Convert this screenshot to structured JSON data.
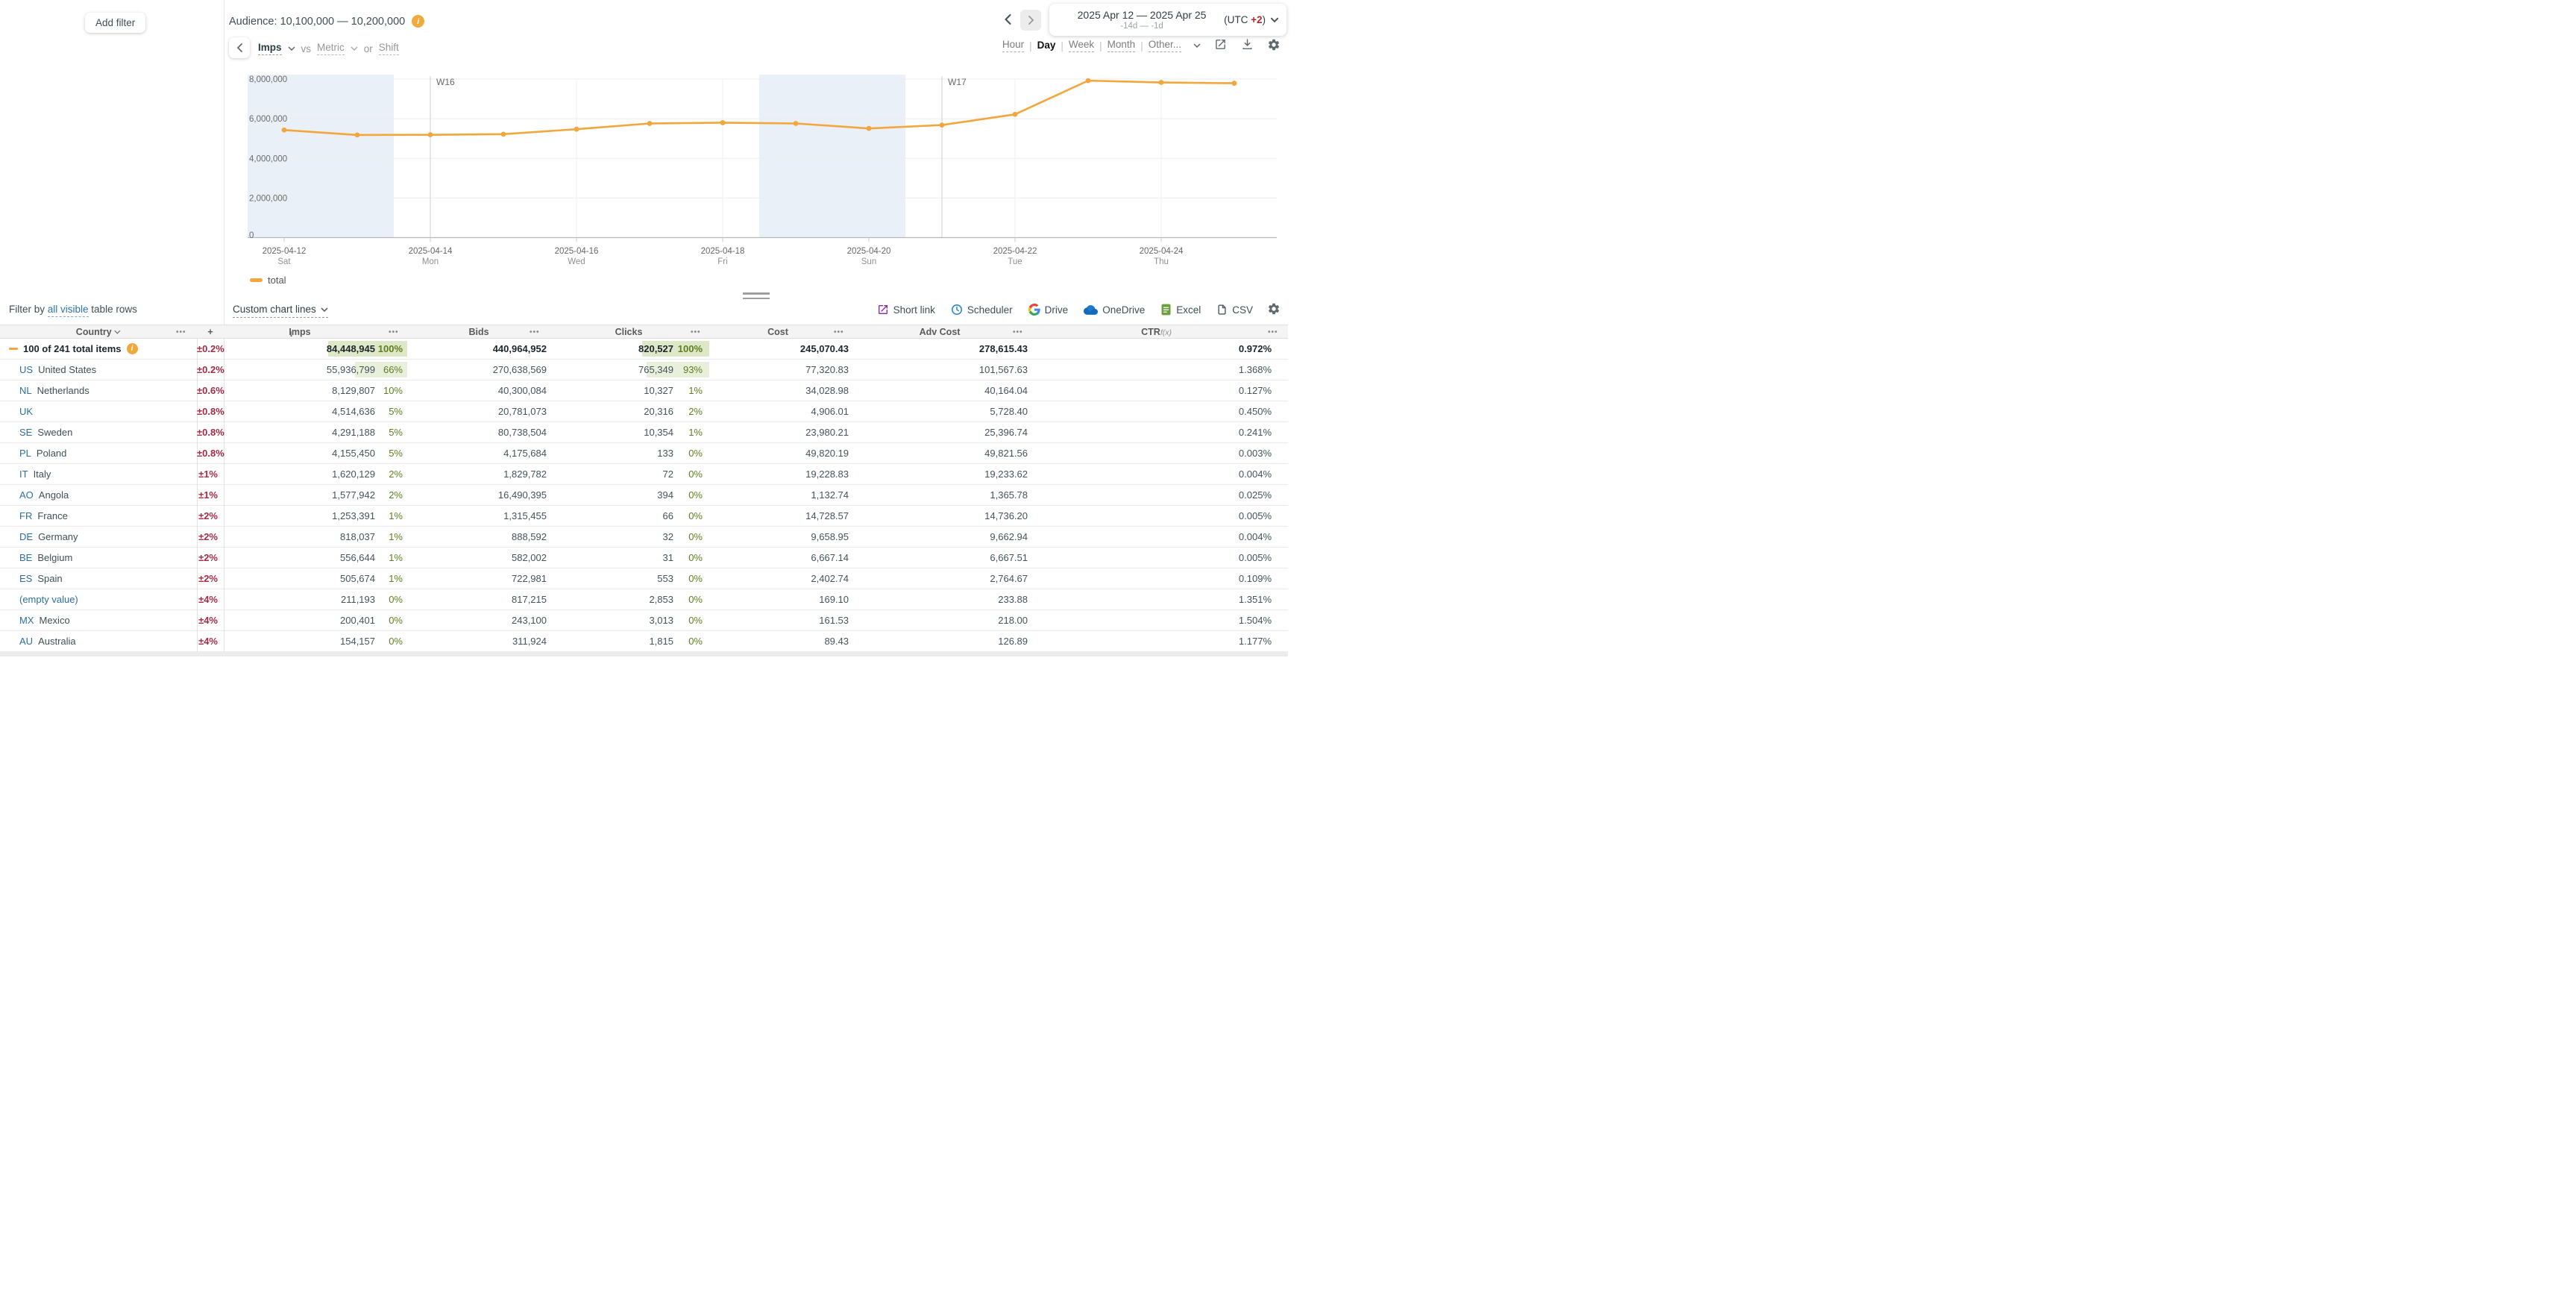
{
  "topbar": {
    "add_filter_label": "Add filter",
    "audience_label": "Audience: 10,100,000 — 10,200,000"
  },
  "controls": {
    "metric_selected": "Imps",
    "vs_label": "vs",
    "metric_placeholder": "Metric",
    "or_label": "or",
    "shift_label": "Shift"
  },
  "datebar": {
    "range_label": "2025 Apr 12 — 2025 Apr 25",
    "relative_label": "-14d — -1d",
    "utc_prefix": "(UTC ",
    "utc_offset": "+2",
    "utc_suffix": ")"
  },
  "granularity": {
    "options": [
      "Hour",
      "Day",
      "Week",
      "Month",
      "Other..."
    ],
    "active": "Day"
  },
  "chart_data": {
    "type": "line",
    "title": "Imps by day",
    "x": [
      "2025-04-12",
      "2025-04-13",
      "2025-04-14",
      "2025-04-15",
      "2025-04-16",
      "2025-04-17",
      "2025-04-18",
      "2025-04-19",
      "2025-04-20",
      "2025-04-21",
      "2025-04-22",
      "2025-04-23",
      "2025-04-24",
      "2025-04-25"
    ],
    "series": [
      {
        "name": "total",
        "color": "#f2a63b",
        "values": [
          5430000,
          5180000,
          5190000,
          5220000,
          5470000,
          5760000,
          5800000,
          5760000,
          5510000,
          5680000,
          6220000,
          7920000,
          7830000,
          7790000
        ]
      }
    ],
    "ylim": [
      0,
      8000000
    ],
    "yticks": [
      0,
      2000000,
      4000000,
      6000000,
      8000000
    ],
    "ytick_labels": [
      "0",
      "2,000,000",
      "4,000,000",
      "6,000,000",
      "8,000,000"
    ],
    "xticks": [
      {
        "date": "2025-04-12",
        "day": "Sat"
      },
      {
        "date": "2025-04-14",
        "day": "Mon"
      },
      {
        "date": "2025-04-16",
        "day": "Wed"
      },
      {
        "date": "2025-04-18",
        "day": "Fri"
      },
      {
        "date": "2025-04-20",
        "day": "Sun"
      },
      {
        "date": "2025-04-22",
        "day": "Tue"
      },
      {
        "date": "2025-04-24",
        "day": "Thu"
      }
    ],
    "week_markers": [
      {
        "label": "W16",
        "date": "2025-04-14"
      },
      {
        "label": "W17",
        "date": "2025-04-21"
      }
    ],
    "weekend_bands": [
      [
        "2025-04-12",
        "2025-04-13"
      ],
      [
        "2025-04-19",
        "2025-04-20"
      ]
    ],
    "grid": true,
    "legend_position": "bottom-left",
    "legend_label": "total"
  },
  "filter_row": {
    "prefix": "Filter by ",
    "link": "all visible",
    "suffix": " table rows",
    "custom_lines_label": "Custom chart lines"
  },
  "export_row": {
    "items": [
      {
        "label": "Short link",
        "icon": "short-link-icon"
      },
      {
        "label": "Scheduler",
        "icon": "scheduler-icon"
      },
      {
        "label": "Drive",
        "icon": "google-drive-icon"
      },
      {
        "label": "OneDrive",
        "icon": "onedrive-icon"
      },
      {
        "label": "Excel",
        "icon": "excel-icon"
      },
      {
        "label": "CSV",
        "icon": "csv-icon"
      }
    ]
  },
  "table": {
    "columns": {
      "country": "Country",
      "plus": "+",
      "imps": "Imps",
      "bids": "Bids",
      "clicks": "Clicks",
      "cost": "Cost",
      "adv_cost": "Adv Cost",
      "ctr": "CTR",
      "ctr_fn": "f(x)"
    },
    "sort_column": "Imps",
    "total_row": {
      "label": "100 of 241 total items",
      "pm": "±0.2%",
      "imps": "84,448,945",
      "imps_pct": 100,
      "imps_pct_label": "100%",
      "bids": "440,964,952",
      "clicks": "820,527",
      "clicks_pct": 100,
      "clicks_pct_label": "100%",
      "cost": "245,070.43",
      "adv_cost": "278,615.43",
      "ctr": "0.972%"
    },
    "rows": [
      {
        "code": "US",
        "name": "United States",
        "pm": "±0.2%",
        "imps": "55,936,799",
        "imps_pct": 66,
        "imps_pct_label": "66%",
        "bids": "270,638,569",
        "clicks": "765,349",
        "clicks_pct": 93,
        "clicks_pct_label": "93%",
        "cost": "77,320.83",
        "adv_cost": "101,567.63",
        "ctr": "1.368%"
      },
      {
        "code": "NL",
        "name": "Netherlands",
        "pm": "±0.6%",
        "imps": "8,129,807",
        "imps_pct": 10,
        "imps_pct_label": "10%",
        "bids": "40,300,084",
        "clicks": "10,327",
        "clicks_pct": 1,
        "clicks_pct_label": "1%",
        "cost": "34,028.98",
        "adv_cost": "40,164.04",
        "ctr": "0.127%"
      },
      {
        "code": "UK",
        "name": "",
        "pm": "±0.8%",
        "imps": "4,514,636",
        "imps_pct": 5,
        "imps_pct_label": "5%",
        "bids": "20,781,073",
        "clicks": "20,316",
        "clicks_pct": 2,
        "clicks_pct_label": "2%",
        "cost": "4,906.01",
        "adv_cost": "5,728.40",
        "ctr": "0.450%"
      },
      {
        "code": "SE",
        "name": "Sweden",
        "pm": "±0.8%",
        "imps": "4,291,188",
        "imps_pct": 5,
        "imps_pct_label": "5%",
        "bids": "80,738,504",
        "clicks": "10,354",
        "clicks_pct": 1,
        "clicks_pct_label": "1%",
        "cost": "23,980.21",
        "adv_cost": "25,396.74",
        "ctr": "0.241%"
      },
      {
        "code": "PL",
        "name": "Poland",
        "pm": "±0.8%",
        "imps": "4,155,450",
        "imps_pct": 5,
        "imps_pct_label": "5%",
        "bids": "4,175,684",
        "clicks": "133",
        "clicks_pct": 0,
        "clicks_pct_label": "0%",
        "cost": "49,820.19",
        "adv_cost": "49,821.56",
        "ctr": "0.003%"
      },
      {
        "code": "IT",
        "name": "Italy",
        "pm": "±1%",
        "imps": "1,620,129",
        "imps_pct": 2,
        "imps_pct_label": "2%",
        "bids": "1,829,782",
        "clicks": "72",
        "clicks_pct": 0,
        "clicks_pct_label": "0%",
        "cost": "19,228.83",
        "adv_cost": "19,233.62",
        "ctr": "0.004%"
      },
      {
        "code": "AO",
        "name": "Angola",
        "pm": "±1%",
        "imps": "1,577,942",
        "imps_pct": 2,
        "imps_pct_label": "2%",
        "bids": "16,490,395",
        "clicks": "394",
        "clicks_pct": 0,
        "clicks_pct_label": "0%",
        "cost": "1,132.74",
        "adv_cost": "1,365.78",
        "ctr": "0.025%"
      },
      {
        "code": "FR",
        "name": "France",
        "pm": "±2%",
        "imps": "1,253,391",
        "imps_pct": 1,
        "imps_pct_label": "1%",
        "bids": "1,315,455",
        "clicks": "66",
        "clicks_pct": 0,
        "clicks_pct_label": "0%",
        "cost": "14,728.57",
        "adv_cost": "14,736.20",
        "ctr": "0.005%"
      },
      {
        "code": "DE",
        "name": "Germany",
        "pm": "±2%",
        "imps": "818,037",
        "imps_pct": 1,
        "imps_pct_label": "1%",
        "bids": "888,592",
        "clicks": "32",
        "clicks_pct": 0,
        "clicks_pct_label": "0%",
        "cost": "9,658.95",
        "adv_cost": "9,662.94",
        "ctr": "0.004%"
      },
      {
        "code": "BE",
        "name": "Belgium",
        "pm": "±2%",
        "imps": "556,644",
        "imps_pct": 1,
        "imps_pct_label": "1%",
        "bids": "582,002",
        "clicks": "31",
        "clicks_pct": 0,
        "clicks_pct_label": "0%",
        "cost": "6,667.14",
        "adv_cost": "6,667.51",
        "ctr": "0.005%"
      },
      {
        "code": "ES",
        "name": "Spain",
        "pm": "±2%",
        "imps": "505,674",
        "imps_pct": 1,
        "imps_pct_label": "1%",
        "bids": "722,981",
        "clicks": "553",
        "clicks_pct": 0,
        "clicks_pct_label": "0%",
        "cost": "2,402.74",
        "adv_cost": "2,764.67",
        "ctr": "0.109%"
      },
      {
        "code": "",
        "name": "(empty value)",
        "name_blue": true,
        "pm": "±4%",
        "imps": "211,193",
        "imps_pct": 0,
        "imps_pct_label": "0%",
        "bids": "817,215",
        "clicks": "2,853",
        "clicks_pct": 0,
        "clicks_pct_label": "0%",
        "cost": "169.10",
        "adv_cost": "233.88",
        "ctr": "1.351%"
      },
      {
        "code": "MX",
        "name": "Mexico",
        "pm": "±4%",
        "imps": "200,401",
        "imps_pct": 0,
        "imps_pct_label": "0%",
        "bids": "243,100",
        "clicks": "3,013",
        "clicks_pct": 0,
        "clicks_pct_label": "0%",
        "cost": "161.53",
        "adv_cost": "218.00",
        "ctr": "1.504%"
      },
      {
        "code": "AU",
        "name": "Australia",
        "pm": "±4%",
        "imps": "154,157",
        "imps_pct": 0,
        "imps_pct_label": "0%",
        "bids": "311,924",
        "clicks": "1,815",
        "clicks_pct": 0,
        "clicks_pct_label": "0%",
        "cost": "89.43",
        "adv_cost": "126.89",
        "ctr": "1.177%"
      }
    ]
  }
}
